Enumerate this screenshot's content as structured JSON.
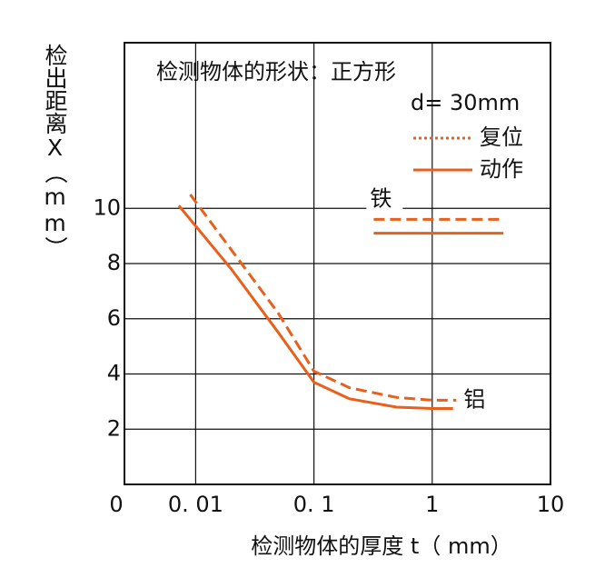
{
  "chart_data": {
    "type": "line",
    "title": "检测物体的形状：正方形",
    "subtitle": "d= 30mm",
    "ylabel": "检出距离X（mm）",
    "xlabel": "检测物体的厚度 t（ mm）",
    "x_origin_label": "0",
    "xscale": "log",
    "xlim": [
      0.0025,
      10
    ],
    "xticks": [
      {
        "value": 0.01,
        "label": "0. 01"
      },
      {
        "value": 0.1,
        "label": "0. 1"
      },
      1,
      10
    ],
    "ylim": [
      0,
      16
    ],
    "yticks": [
      2,
      4,
      6,
      8,
      10
    ],
    "grid": true,
    "legend": "upper right",
    "series": [
      {
        "name": "复位",
        "color": "#e8601c",
        "style": "dashed",
        "x": [
          0.009,
          0.02,
          0.05,
          0.1,
          0.2,
          0.5,
          1,
          1.6
        ],
        "values": [
          10.5,
          8.5,
          6.2,
          4.1,
          3.5,
          3.15,
          3.05,
          3.05
        ]
      },
      {
        "name": "动作",
        "color": "#e8601c",
        "style": "solid",
        "x": [
          0.0072,
          0.02,
          0.05,
          0.1,
          0.2,
          0.5,
          1,
          1.5
        ],
        "values": [
          10.1,
          7.8,
          5.5,
          3.7,
          3.1,
          2.8,
          2.75,
          2.75
        ]
      }
    ],
    "iron": {
      "label": "铁",
      "x": [
        0.32,
        4
      ],
      "reset": 9.6,
      "operate": 9.1
    },
    "aluminum_label": "铝"
  }
}
